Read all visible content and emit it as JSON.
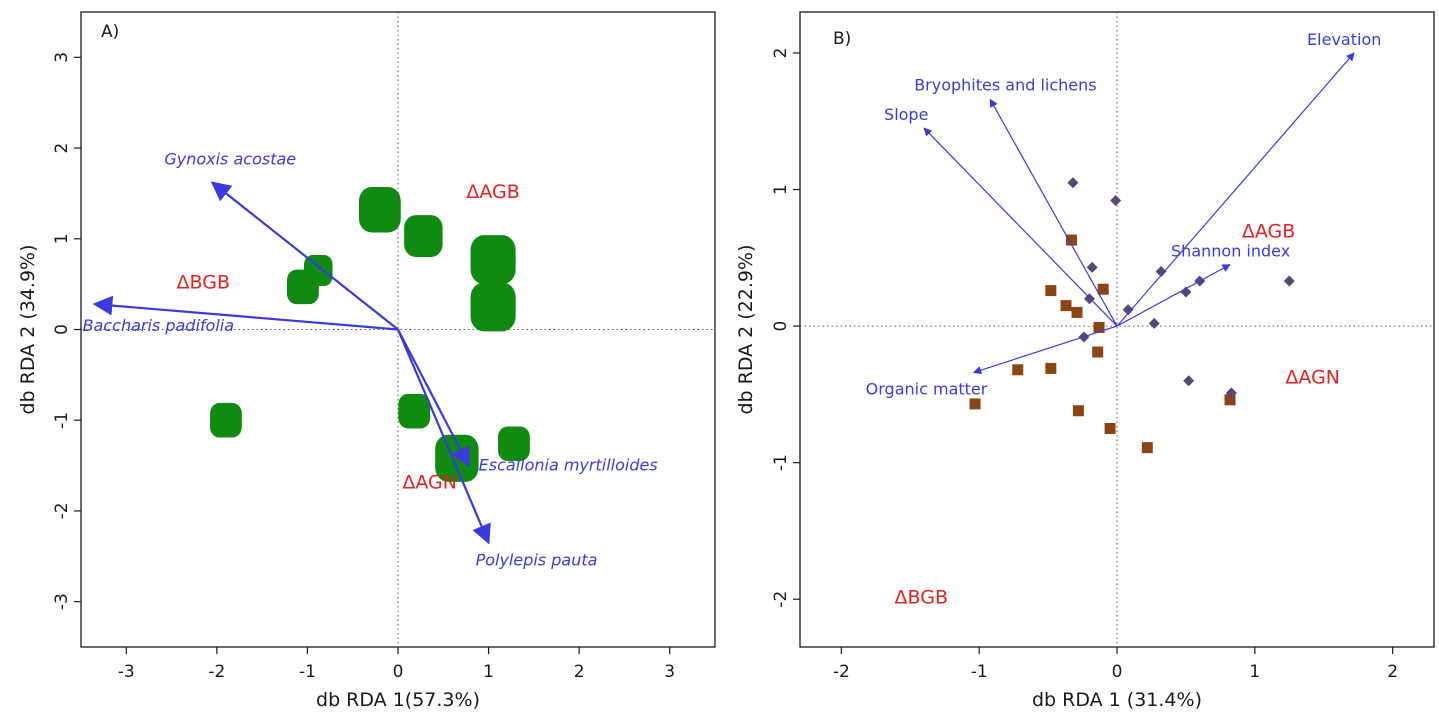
{
  "colors": {
    "arrow": "#3a3ae0",
    "response": "#e82020",
    "bubble": "#108a10",
    "square": "#8b4513",
    "diamond": "#5a4672",
    "axis": "#1a1a1a"
  },
  "chart_data": [
    {
      "type": "scatter",
      "panel": "A)",
      "xlabel": "db  RDA 1(57.3%)",
      "ylabel": "db RDA 2 (34.9%)",
      "xlim": [
        -3.5,
        3.5
      ],
      "ylim": [
        -3.5,
        3.5
      ],
      "xticks": [
        -3,
        -2,
        -1,
        0,
        1,
        2,
        3
      ],
      "yticks": [
        -3,
        -2,
        -1,
        0,
        1,
        2,
        3
      ],
      "reference_lines": {
        "x": 0,
        "y": 0,
        "style": "dotted"
      },
      "points": [
        {
          "x": -0.2,
          "y": 1.32,
          "size": 1.3
        },
        {
          "x": 0.28,
          "y": 1.03,
          "size": 1.1
        },
        {
          "x": 1.05,
          "y": 0.77,
          "size": 1.5
        },
        {
          "x": 1.05,
          "y": 0.25,
          "size": 1.5
        },
        {
          "x": -0.88,
          "y": 0.65,
          "size": 0.5
        },
        {
          "x": -1.05,
          "y": 0.47,
          "size": 0.7
        },
        {
          "x": -1.9,
          "y": -1.0,
          "size": 0.7
        },
        {
          "x": 0.18,
          "y": -0.9,
          "size": 0.7
        },
        {
          "x": 0.65,
          "y": -1.42,
          "size": 1.4
        },
        {
          "x": 1.28,
          "y": -1.26,
          "size": 0.7
        }
      ],
      "vectors": [
        {
          "name": "Gynoxis acostae",
          "x": -2.05,
          "y": 1.62
        },
        {
          "name": "Baccharis padifolia",
          "x": -3.35,
          "y": 0.28
        },
        {
          "name": "Escallonia myrtilloides",
          "x": 0.78,
          "y": -1.5
        },
        {
          "name": "Polylepis pauta",
          "x": 1.0,
          "y": -2.35
        }
      ],
      "response_labels": [
        {
          "text": "ΔAGB",
          "x": 1.05,
          "y": 1.45
        },
        {
          "text": "ΔBGB",
          "x": -2.15,
          "y": 0.45
        },
        {
          "text": "ΔAGN",
          "x": 0.35,
          "y": -1.75
        }
      ]
    },
    {
      "type": "scatter",
      "panel": "B)",
      "xlabel": "db RDA 1 (31.4%)",
      "ylabel": "db RDA 2 (22.9%)",
      "xlim": [
        -2.3,
        2.3
      ],
      "ylim": [
        -2.35,
        2.3
      ],
      "xticks": [
        -2,
        -1,
        0,
        1,
        2
      ],
      "yticks": [
        -2,
        -1,
        0,
        1,
        2
      ],
      "reference_lines": {
        "x": 0,
        "y": 0,
        "style": "dotted"
      },
      "squares": [
        {
          "x": -0.33,
          "y": 0.63
        },
        {
          "x": -0.48,
          "y": 0.26
        },
        {
          "x": -0.1,
          "y": 0.27
        },
        {
          "x": -0.37,
          "y": 0.15
        },
        {
          "x": -0.29,
          "y": 0.1
        },
        {
          "x": -0.13,
          "y": -0.01
        },
        {
          "x": -0.14,
          "y": -0.19
        },
        {
          "x": -0.72,
          "y": -0.32
        },
        {
          "x": -0.48,
          "y": -0.31
        },
        {
          "x": -1.03,
          "y": -0.57
        },
        {
          "x": -0.28,
          "y": -0.62
        },
        {
          "x": -0.05,
          "y": -0.75
        },
        {
          "x": 0.22,
          "y": -0.89
        },
        {
          "x": 0.82,
          "y": -0.54
        }
      ],
      "diamonds": [
        {
          "x": -0.32,
          "y": 1.05
        },
        {
          "x": -0.01,
          "y": 0.92
        },
        {
          "x": -0.18,
          "y": 0.43
        },
        {
          "x": 0.32,
          "y": 0.4
        },
        {
          "x": -0.2,
          "y": 0.2
        },
        {
          "x": 0.08,
          "y": 0.12
        },
        {
          "x": 0.5,
          "y": 0.25
        },
        {
          "x": 0.6,
          "y": 0.33
        },
        {
          "x": 0.27,
          "y": 0.02
        },
        {
          "x": -0.24,
          "y": -0.08
        },
        {
          "x": 1.25,
          "y": 0.33
        },
        {
          "x": 0.52,
          "y": -0.4
        },
        {
          "x": 0.83,
          "y": -0.49
        }
      ],
      "vectors": [
        {
          "name": "Elevation",
          "x": 1.72,
          "y": 2.0
        },
        {
          "name": "Bryophites and lichens",
          "x": -0.92,
          "y": 1.66
        },
        {
          "name": "Slope",
          "x": -1.4,
          "y": 1.45
        },
        {
          "name": "Shannon index",
          "x": 0.82,
          "y": 0.45
        },
        {
          "name": "Organic matter",
          "x": -1.04,
          "y": -0.34
        }
      ],
      "response_labels": [
        {
          "text": "ΔAGB",
          "x": 1.1,
          "y": 0.65
        },
        {
          "text": "ΔAGN",
          "x": 1.42,
          "y": -0.42
        },
        {
          "text": "ΔBGB",
          "x": -1.42,
          "y": -2.03
        }
      ]
    }
  ]
}
